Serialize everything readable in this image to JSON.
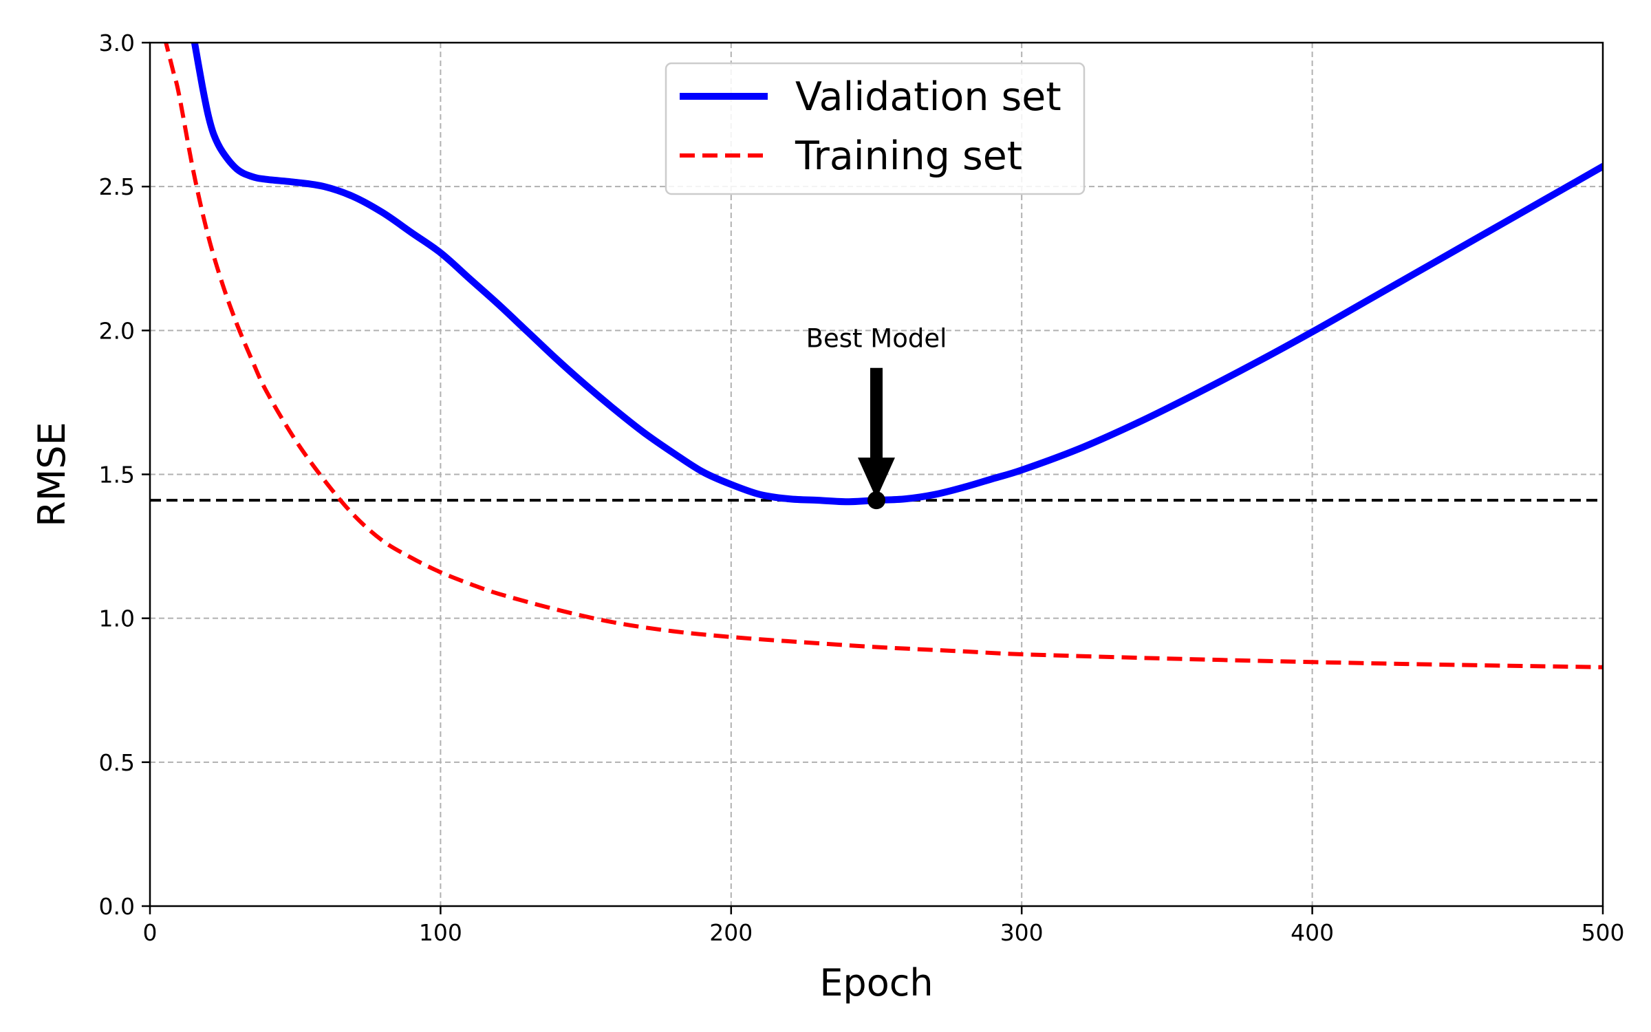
{
  "chart_data": {
    "type": "line",
    "xlabel": "Epoch",
    "ylabel": "RMSE",
    "xlim": [
      0,
      500
    ],
    "ylim": [
      0,
      3.0
    ],
    "xticks": [
      0,
      100,
      200,
      300,
      400,
      500
    ],
    "xtick_labels": [
      "0",
      "100",
      "200",
      "300",
      "400",
      "500"
    ],
    "yticks": [
      0,
      0.5,
      1.0,
      1.5,
      2.0,
      2.5,
      3.0
    ],
    "ytick_labels": [
      "0.0",
      "0.5",
      "1.0",
      "1.5",
      "2.0",
      "2.5",
      "3.0"
    ],
    "grid": true,
    "legend_position": "top-center",
    "series": [
      {
        "name": "Validation set",
        "style": "solid",
        "color": "#0000ff",
        "x": [
          15,
          18,
          20,
          22,
          25,
          30,
          35,
          40,
          50,
          60,
          70,
          80,
          90,
          100,
          110,
          120,
          130,
          140,
          150,
          160,
          170,
          180,
          190,
          200,
          210,
          220,
          230,
          240,
          250,
          260,
          270,
          280,
          290,
          300,
          320,
          340,
          360,
          380,
          400,
          420,
          440,
          460,
          480,
          500
        ],
        "y": [
          3.02,
          2.85,
          2.75,
          2.68,
          2.62,
          2.56,
          2.535,
          2.525,
          2.515,
          2.5,
          2.465,
          2.41,
          2.34,
          2.27,
          2.18,
          2.09,
          1.995,
          1.9,
          1.81,
          1.725,
          1.645,
          1.575,
          1.51,
          1.465,
          1.43,
          1.415,
          1.41,
          1.405,
          1.41,
          1.415,
          1.43,
          1.455,
          1.485,
          1.515,
          1.59,
          1.68,
          1.78,
          1.885,
          1.995,
          2.11,
          2.225,
          2.34,
          2.455,
          2.57
        ]
      },
      {
        "name": "Training set",
        "style": "dashed",
        "color": "#ff0000",
        "x": [
          5,
          8,
          10,
          15,
          20,
          25,
          30,
          35,
          40,
          50,
          60,
          70,
          80,
          90,
          100,
          110,
          120,
          140,
          160,
          180,
          200,
          220,
          250,
          280,
          300,
          350,
          400,
          450,
          500
        ],
        "y": [
          3.02,
          2.9,
          2.82,
          2.55,
          2.33,
          2.16,
          2.02,
          1.9,
          1.79,
          1.62,
          1.48,
          1.36,
          1.27,
          1.21,
          1.16,
          1.12,
          1.085,
          1.03,
          0.985,
          0.955,
          0.935,
          0.92,
          0.9,
          0.885,
          0.875,
          0.86,
          0.848,
          0.838,
          0.83
        ]
      }
    ],
    "reference_line": {
      "y": 1.41,
      "style": "dashed",
      "color": "#000000"
    },
    "annotation": {
      "text": "Best Model",
      "point": [
        250,
        1.41
      ],
      "arrow_start_y": 1.87
    }
  }
}
